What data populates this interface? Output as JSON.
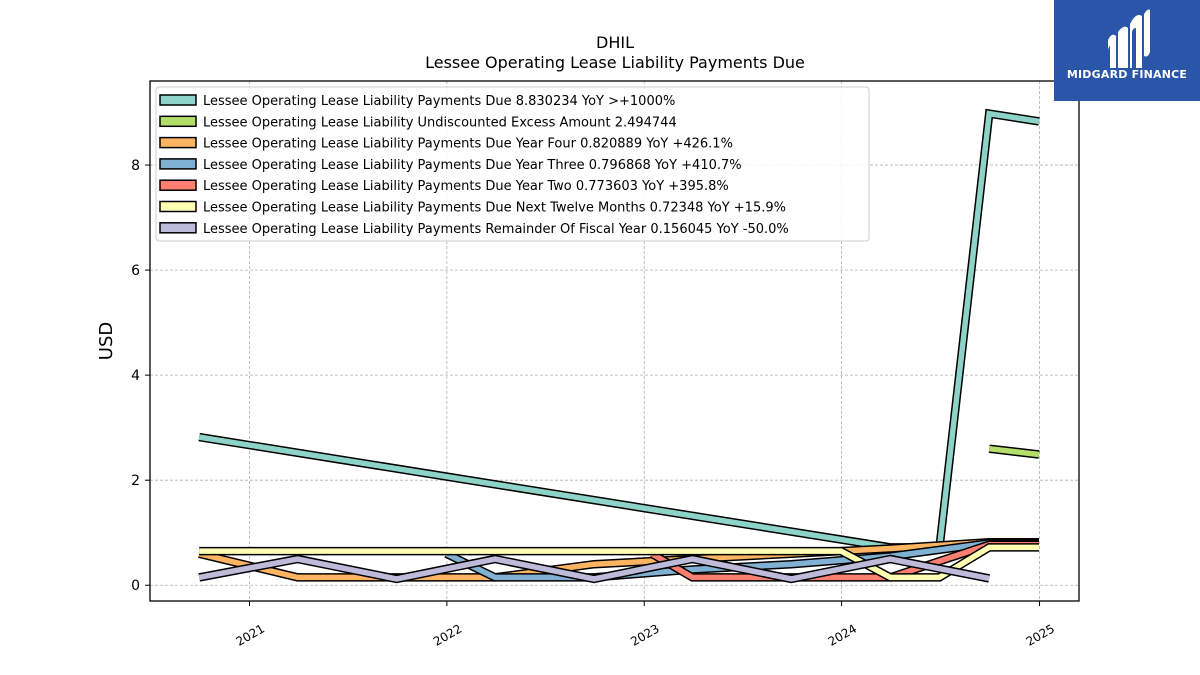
{
  "chart_data": {
    "type": "line",
    "title": "DHIL",
    "subtitle": "Lessee Operating Lease Liability Payments Due",
    "ylabel": "USD",
    "xlabel": "",
    "x_ticks": [
      "2021",
      "2022",
      "2023",
      "2024",
      "2025"
    ],
    "y_ticks": [
      "0",
      "2",
      "4",
      "6",
      "8"
    ],
    "xlim": [
      "2020-07-01",
      "2025-03-15"
    ],
    "ylim": [
      -0.3,
      9.6
    ],
    "grid": true,
    "legend_position": "top-left",
    "series": [
      {
        "name": "Lessee Operating Lease Liability Payments Due",
        "legend": "Lessee Operating Lease Liability Payments Due  8.830234 YoY >+1000%",
        "color": "#8dd3c7",
        "points": [
          [
            "2020-09-30",
            2.82
          ],
          [
            "2024-03-31",
            0.72
          ],
          [
            "2024-06-30",
            0.72
          ],
          [
            "2024-09-30",
            8.98
          ],
          [
            "2024-12-31",
            8.83
          ]
        ]
      },
      {
        "name": "Lessee Operating Lease Liability Undiscounted Excess Amount",
        "legend": "Lessee Operating Lease Liability Undiscounted Excess Amount  2.494744",
        "color": "#b3de69",
        "points": [
          [
            "2024-09-30",
            2.6
          ],
          [
            "2024-12-31",
            2.49
          ]
        ]
      },
      {
        "name": "Lessee Operating Lease Liability Payments Due Year Four",
        "legend": "Lessee Operating Lease Liability Payments Due Year Four  0.820889 YoY +426.1%",
        "color": "#fdb462",
        "points": [
          [
            "2020-09-30",
            0.6
          ],
          [
            "2021-03-31",
            0.15
          ],
          [
            "2021-09-30",
            0.15
          ],
          [
            "2022-03-31",
            0.15
          ],
          [
            "2022-09-30",
            0.4
          ],
          [
            "2023-03-31",
            0.5
          ],
          [
            "2023-09-30",
            0.6
          ],
          [
            "2024-03-31",
            0.7
          ],
          [
            "2024-09-30",
            0.82
          ],
          [
            "2024-12-31",
            0.82
          ]
        ]
      },
      {
        "name": "Lessee Operating Lease Liability Payments Due Year Three",
        "legend": "Lessee Operating Lease Liability Payments Due Year Three  0.796868 YoY +410.7%",
        "color": "#80b1d3",
        "points": [
          [
            "2021-12-31",
            0.6
          ],
          [
            "2022-03-31",
            0.15
          ],
          [
            "2022-09-30",
            0.15
          ],
          [
            "2023-03-31",
            0.3
          ],
          [
            "2023-09-30",
            0.4
          ],
          [
            "2024-03-31",
            0.55
          ],
          [
            "2024-09-30",
            0.8
          ],
          [
            "2024-12-31",
            0.8
          ]
        ]
      },
      {
        "name": "Lessee Operating Lease Liability Payments Due Year Two",
        "legend": "Lessee Operating Lease Liability Payments Due Year Two  0.773603 YoY +395.8%",
        "color": "#fb8072",
        "points": [
          [
            "2023-01-15",
            0.6
          ],
          [
            "2023-03-31",
            0.15
          ],
          [
            "2023-09-30",
            0.15
          ],
          [
            "2024-03-31",
            0.15
          ],
          [
            "2024-09-30",
            0.77
          ],
          [
            "2024-12-31",
            0.77
          ]
        ]
      },
      {
        "name": "Lessee Operating Lease Liability Payments Due Next Twelve Months",
        "legend": "Lessee Operating Lease Liability Payments Due Next Twelve Months  0.72348 YoY +15.9%",
        "color": "#ffffb3",
        "points": [
          [
            "2020-09-30",
            0.65
          ],
          [
            "2023-12-31",
            0.65
          ],
          [
            "2024-03-31",
            0.15
          ],
          [
            "2024-06-30",
            0.15
          ],
          [
            "2024-09-30",
            0.72
          ],
          [
            "2024-12-31",
            0.72
          ]
        ]
      },
      {
        "name": "Lessee Operating Lease Liability Payments Remainder Of Fiscal Year",
        "legend": "Lessee Operating Lease Liability Payments Remainder Of Fiscal Year  0.156045 YoY -50.0%",
        "color": "#bebada",
        "points": [
          [
            "2020-09-30",
            0.15
          ],
          [
            "2021-03-31",
            0.5
          ],
          [
            "2021-09-30",
            0.12
          ],
          [
            "2022-03-31",
            0.5
          ],
          [
            "2022-09-30",
            0.12
          ],
          [
            "2023-03-31",
            0.5
          ],
          [
            "2023-09-30",
            0.12
          ],
          [
            "2024-03-31",
            0.5
          ],
          [
            "2024-09-30",
            0.13
          ]
        ]
      }
    ]
  },
  "logo": {
    "name": "MIDGARD FINANCE",
    "brand_color": "#2b55a8"
  }
}
